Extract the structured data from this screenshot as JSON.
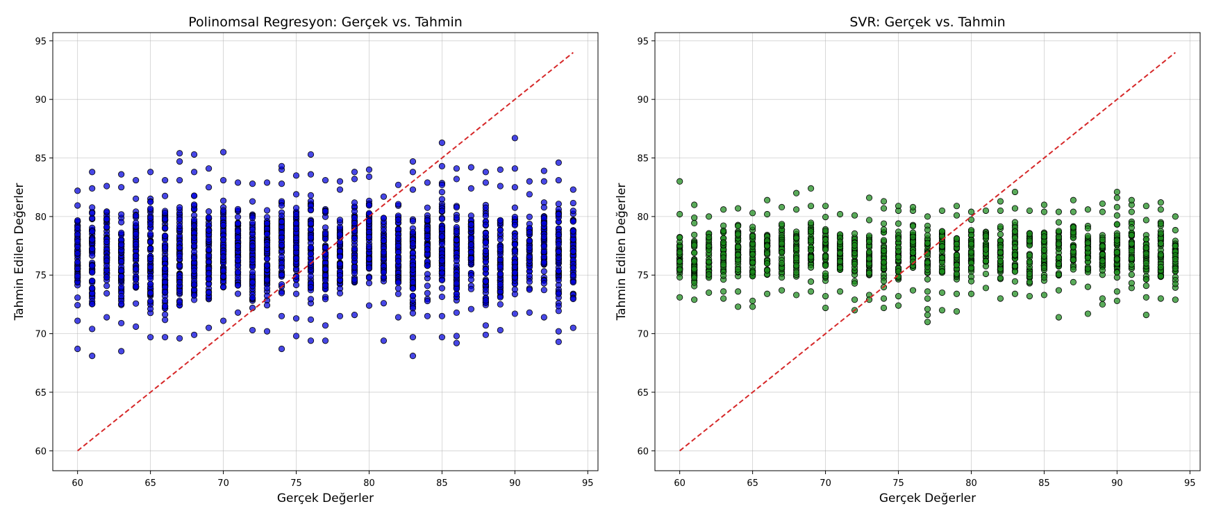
{
  "chart_data": [
    {
      "type": "scatter",
      "title": "Polinomsal Regresyon: Gerçek vs. Tahmin",
      "xlabel": "Gerçek Değerler",
      "ylabel": "Tahmin Edilen Değerler",
      "xlim": [
        58.3,
        95.7
      ],
      "ylim": [
        58.3,
        95.7
      ],
      "xticks": [
        60,
        65,
        70,
        75,
        80,
        85,
        90,
        95
      ],
      "yticks": [
        60,
        65,
        70,
        75,
        80,
        85,
        90,
        95
      ],
      "grid": true,
      "marker_color": "#0000dd",
      "reference_line": {
        "x": [
          60,
          94
        ],
        "y": [
          60,
          94
        ],
        "color": "#d62728",
        "style": "dashed"
      },
      "columns": [
        {
          "x": 60,
          "ymin": 71.1,
          "ymax": 82.2,
          "outliers": [
            68.7
          ]
        },
        {
          "x": 61,
          "ymin": 70.4,
          "ymax": 82.4,
          "outliers": [
            68.1,
            83.8
          ]
        },
        {
          "x": 62,
          "ymin": 71.4,
          "ymax": 82.6
        },
        {
          "x": 63,
          "ymin": 70.9,
          "ymax": 82.5,
          "outliers": [
            68.5,
            83.6
          ]
        },
        {
          "x": 64,
          "ymin": 70.6,
          "ymax": 83.1
        },
        {
          "x": 65,
          "ymin": 69.7,
          "ymax": 83.8
        },
        {
          "x": 66,
          "ymin": 69.7,
          "ymax": 83.1
        },
        {
          "x": 67,
          "ymin": 69.6,
          "ymax": 83.1,
          "outliers": [
            84.7,
            85.4
          ]
        },
        {
          "x": 68,
          "ymin": 69.9,
          "ymax": 83.8,
          "outliers": [
            85.3
          ]
        },
        {
          "x": 69,
          "ymin": 70.5,
          "ymax": 82.5,
          "outliers": [
            84.1
          ]
        },
        {
          "x": 70,
          "ymin": 71.1,
          "ymax": 83.1,
          "outliers": [
            85.5
          ]
        },
        {
          "x": 71,
          "ymin": 71.8,
          "ymax": 82.9
        },
        {
          "x": 72,
          "ymin": 70.3,
          "ymax": 82.8
        },
        {
          "x": 73,
          "ymin": 70.2,
          "ymax": 82.9
        },
        {
          "x": 74,
          "ymin": 71.5,
          "ymax": 82.8,
          "outliers": [
            68.7,
            84.0,
            84.3
          ]
        },
        {
          "x": 75,
          "ymin": 71.3,
          "ymax": 83.5,
          "outliers": [
            69.8
          ]
        },
        {
          "x": 76,
          "ymin": 71.2,
          "ymax": 83.6,
          "outliers": [
            69.4,
            85.3
          ]
        },
        {
          "x": 77,
          "ymin": 70.7,
          "ymax": 83.1,
          "outliers": [
            69.4
          ]
        },
        {
          "x": 78,
          "ymin": 71.5,
          "ymax": 82.3,
          "outliers": [
            83.0
          ]
        },
        {
          "x": 79,
          "ymin": 71.6,
          "ymax": 83.2,
          "outliers": [
            83.8
          ]
        },
        {
          "x": 80,
          "ymin": 72.4,
          "ymax": 83.4,
          "outliers": [
            84.0
          ]
        },
        {
          "x": 81,
          "ymin": 72.6,
          "ymax": 81.7,
          "outliers": [
            69.4
          ]
        },
        {
          "x": 82,
          "ymin": 71.4,
          "ymax": 82.7
        },
        {
          "x": 83,
          "ymin": 69.7,
          "ymax": 82.3,
          "outliers": [
            68.1,
            83.8,
            84.7
          ]
        },
        {
          "x": 84,
          "ymin": 71.5,
          "ymax": 82.9
        },
        {
          "x": 85,
          "ymin": 71.5,
          "ymax": 84.3,
          "outliers": [
            69.7,
            86.3
          ]
        },
        {
          "x": 86,
          "ymin": 69.8,
          "ymax": 83.2,
          "outliers": [
            69.2,
            84.1
          ]
        },
        {
          "x": 87,
          "ymin": 72.1,
          "ymax": 82.4,
          "outliers": [
            84.2
          ]
        },
        {
          "x": 88,
          "ymin": 70.7,
          "ymax": 82.9,
          "outliers": [
            69.9,
            83.8
          ]
        },
        {
          "x": 89,
          "ymin": 70.3,
          "ymax": 82.6,
          "outliers": [
            84.0
          ]
        },
        {
          "x": 90,
          "ymin": 71.7,
          "ymax": 82.5,
          "outliers": [
            84.1,
            86.7
          ]
        },
        {
          "x": 91,
          "ymin": 71.8,
          "ymax": 81.9,
          "outliers": [
            83.0
          ]
        },
        {
          "x": 92,
          "ymin": 71.4,
          "ymax": 83.0,
          "outliers": [
            83.9
          ]
        },
        {
          "x": 93,
          "ymin": 70.2,
          "ymax": 83.1,
          "outliers": [
            69.3,
            84.6
          ]
        },
        {
          "x": 94,
          "ymin": 70.5,
          "ymax": 82.3
        }
      ]
    },
    {
      "type": "scatter",
      "title": "SVR: Gerçek vs. Tahmin",
      "xlabel": "Gerçek Değerler",
      "ylabel": "Tahmin Edilen Değerler",
      "xlim": [
        58.3,
        95.7
      ],
      "ylim": [
        58.3,
        95.7
      ],
      "xticks": [
        60,
        65,
        70,
        75,
        80,
        85,
        90,
        95
      ],
      "yticks": [
        60,
        65,
        70,
        75,
        80,
        85,
        90,
        95
      ],
      "grid": true,
      "marker_color": "#1a8a1a",
      "reference_line": {
        "x": [
          60,
          94
        ],
        "y": [
          60,
          94
        ],
        "color": "#d62728",
        "style": "dashed"
      },
      "columns": [
        {
          "x": 60,
          "ymin": 73.1,
          "ymax": 80.2,
          "outliers": [
            83.0
          ]
        },
        {
          "x": 61,
          "ymin": 72.9,
          "ymax": 79.9,
          "outliers": [
            81.0
          ]
        },
        {
          "x": 62,
          "ymin": 73.5,
          "ymax": 80.0
        },
        {
          "x": 63,
          "ymin": 73.6,
          "ymax": 80.6,
          "outliers": [
            73.0
          ]
        },
        {
          "x": 64,
          "ymin": 73.6,
          "ymax": 80.7,
          "outliers": [
            72.3
          ]
        },
        {
          "x": 65,
          "ymin": 72.8,
          "ymax": 80.3,
          "outliers": [
            72.3
          ]
        },
        {
          "x": 66,
          "ymin": 73.4,
          "ymax": 80.2,
          "outliers": [
            81.4
          ]
        },
        {
          "x": 67,
          "ymin": 73.7,
          "ymax": 80.8
        },
        {
          "x": 68,
          "ymin": 73.3,
          "ymax": 80.6,
          "outliers": [
            82.0
          ]
        },
        {
          "x": 69,
          "ymin": 73.6,
          "ymax": 80.9,
          "outliers": [
            82.4
          ]
        },
        {
          "x": 70,
          "ymin": 73.2,
          "ymax": 80.9,
          "outliers": [
            72.2
          ]
        },
        {
          "x": 71,
          "ymin": 73.6,
          "ymax": 80.2
        },
        {
          "x": 72,
          "ymin": 72.9,
          "ymax": 80.1,
          "outliers": [
            72.0
          ]
        },
        {
          "x": 73,
          "ymin": 73.3,
          "ymax": 79.7,
          "outliers": [
            72.9,
            81.6
          ]
        },
        {
          "x": 74,
          "ymin": 73.0,
          "ymax": 80.7,
          "outliers": [
            72.2,
            81.3
          ]
        },
        {
          "x": 75,
          "ymin": 73.2,
          "ymax": 80.5,
          "outliers": [
            72.4,
            80.9
          ]
        },
        {
          "x": 76,
          "ymin": 73.7,
          "ymax": 80.5,
          "outliers": [
            80.8
          ]
        },
        {
          "x": 77,
          "ymin": 73.6,
          "ymax": 80.0,
          "outliers": [
            71.0,
            71.6,
            72.1,
            73.0
          ]
        },
        {
          "x": 78,
          "ymin": 73.5,
          "ymax": 80.5,
          "outliers": [
            72.0
          ]
        },
        {
          "x": 79,
          "ymin": 73.4,
          "ymax": 80.1,
          "outliers": [
            71.9,
            80.9
          ]
        },
        {
          "x": 80,
          "ymin": 73.4,
          "ymax": 80.4
        },
        {
          "x": 81,
          "ymin": 73.9,
          "ymax": 80.5
        },
        {
          "x": 82,
          "ymin": 73.0,
          "ymax": 80.5,
          "outliers": [
            81.3
          ]
        },
        {
          "x": 83,
          "ymin": 73.4,
          "ymax": 80.7,
          "outliers": [
            82.1
          ]
        },
        {
          "x": 84,
          "ymin": 73.2,
          "ymax": 80.5
        },
        {
          "x": 85,
          "ymin": 73.3,
          "ymax": 80.4,
          "outliers": [
            81.0
          ]
        },
        {
          "x": 86,
          "ymin": 73.7,
          "ymax": 80.4,
          "outliers": [
            71.4
          ]
        },
        {
          "x": 87,
          "ymin": 74.4,
          "ymax": 80.4,
          "outliers": [
            81.4
          ]
        },
        {
          "x": 88,
          "ymin": 74.0,
          "ymax": 80.6,
          "outliers": [
            71.7
          ]
        },
        {
          "x": 89,
          "ymin": 73.0,
          "ymax": 80.4,
          "outliers": [
            72.5,
            81.1
          ]
        },
        {
          "x": 90,
          "ymin": 73.6,
          "ymax": 80.8,
          "outliers": [
            72.8,
            81.6,
            82.1
          ]
        },
        {
          "x": 91,
          "ymin": 73.9,
          "ymax": 80.4,
          "outliers": [
            81.0,
            81.4
          ]
        },
        {
          "x": 92,
          "ymin": 73.1,
          "ymax": 79.7,
          "outliers": [
            71.6,
            80.9
          ]
        },
        {
          "x": 93,
          "ymin": 73.0,
          "ymax": 80.6,
          "outliers": [
            81.2
          ]
        },
        {
          "x": 94,
          "ymin": 72.9,
          "ymax": 80.0
        }
      ]
    }
  ]
}
